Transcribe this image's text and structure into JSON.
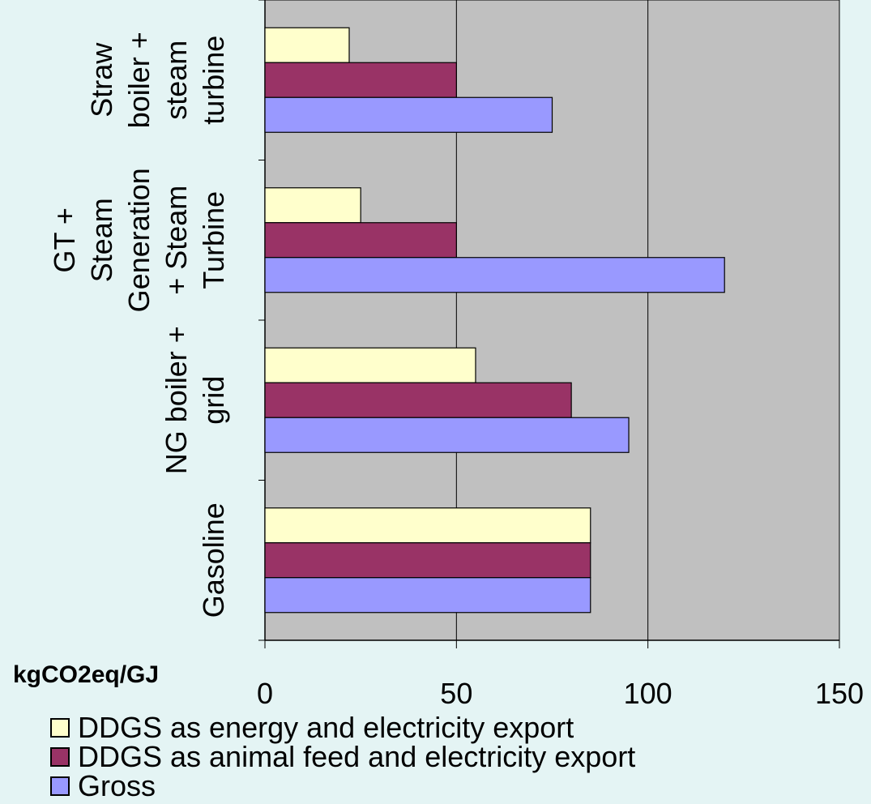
{
  "chart_data": {
    "type": "bar",
    "orientation": "horizontal",
    "categories": [
      [
        "Gasoline"
      ],
      [
        "NG boiler +",
        "grid"
      ],
      [
        "GT +",
        "Steam",
        "Generation",
        "+ Steam",
        "Turbine"
      ],
      [
        "Straw",
        "boiler +",
        "steam",
        "turbine"
      ]
    ],
    "series": [
      {
        "name": "DDGS as energy and electricity export",
        "color": "#ffffcc",
        "values": [
          85,
          55,
          25,
          22
        ]
      },
      {
        "name": "DDGS as animal feed and electricity export",
        "color": "#993366",
        "values": [
          85,
          80,
          50,
          50
        ]
      },
      {
        "name": "Gross",
        "color": "#9999ff",
        "values": [
          85,
          95,
          120,
          75
        ]
      }
    ],
    "xlim": [
      0,
      150
    ],
    "xticks": [
      0,
      50,
      100,
      150
    ],
    "xlabel": "kgCO2eq/GJ",
    "grid": true,
    "plot_background": "#c0c0c0",
    "legend_position": "bottom"
  }
}
